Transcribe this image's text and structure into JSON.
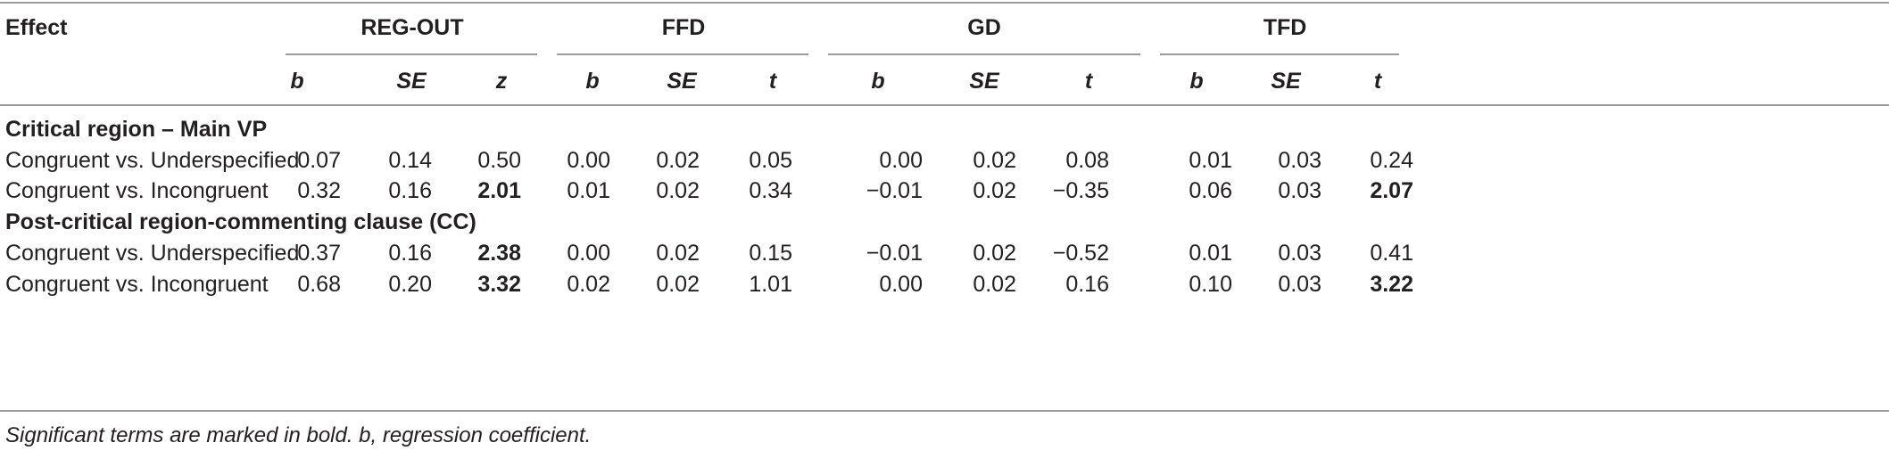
{
  "header": {
    "effect_label": "Effect",
    "groups": [
      "REG-OUT",
      "FFD",
      "GD",
      "TFD"
    ],
    "subheaders": [
      "b",
      "SE",
      "z",
      "b",
      "SE",
      "t",
      "b",
      "SE",
      "t",
      "b",
      "SE",
      "t"
    ]
  },
  "sections": [
    {
      "title": "Critical region – Main VP",
      "rows": [
        {
          "label": "Congruent vs. Underspecified",
          "values": [
            "0.07",
            "0.14",
            "0.50",
            "0.00",
            "0.02",
            "0.05",
            "0.00",
            "0.02",
            "0.08",
            "0.01",
            "0.03",
            "0.24"
          ],
          "bold": [
            false,
            false,
            false,
            false,
            false,
            false,
            false,
            false,
            false,
            false,
            false,
            false
          ]
        },
        {
          "label": "Congruent vs. Incongruent",
          "values": [
            "0.32",
            "0.16",
            "2.01",
            "0.01",
            "0.02",
            "0.34",
            "−0.01",
            "0.02",
            "−0.35",
            "0.06",
            "0.03",
            "2.07"
          ],
          "bold": [
            false,
            false,
            true,
            false,
            false,
            false,
            false,
            false,
            false,
            false,
            false,
            true
          ]
        }
      ]
    },
    {
      "title": "Post-critical region-commenting clause (CC)",
      "rows": [
        {
          "label": "Congruent vs. Underspecified",
          "values": [
            "0.37",
            "0.16",
            "2.38",
            "0.00",
            "0.02",
            "0.15",
            "−0.01",
            "0.02",
            "−0.52",
            "0.01",
            "0.03",
            "0.41"
          ],
          "bold": [
            false,
            false,
            true,
            false,
            false,
            false,
            false,
            false,
            false,
            false,
            false,
            false
          ]
        },
        {
          "label": "Congruent vs. Incongruent",
          "values": [
            "0.68",
            "0.20",
            "3.32",
            "0.02",
            "0.02",
            "1.01",
            "0.00",
            "0.02",
            "0.16",
            "0.10",
            "0.03",
            "3.22"
          ],
          "bold": [
            false,
            false,
            true,
            false,
            false,
            false,
            false,
            false,
            false,
            false,
            false,
            true
          ]
        }
      ]
    }
  ],
  "footnote": "Significant terms are marked in bold. b, regression coefficient."
}
